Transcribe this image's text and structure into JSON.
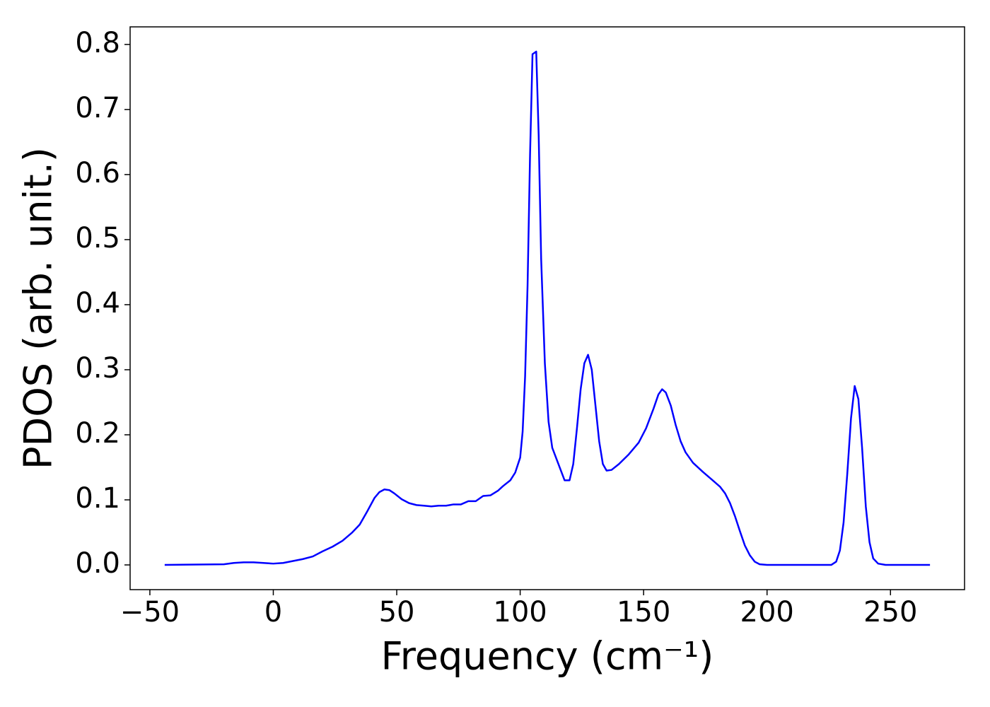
{
  "chart_data": {
    "type": "line",
    "xlabel": "Frequency (cm⁻¹)",
    "ylabel": "PDOS (arb. unit.)",
    "x": [
      -44,
      -20,
      -16,
      -12,
      -8,
      -4,
      0,
      4,
      8,
      12,
      16,
      20,
      24,
      28,
      32,
      35,
      38,
      41,
      43,
      45,
      47,
      49,
      52,
      55,
      58,
      61,
      64,
      67,
      70,
      73,
      76,
      79,
      82,
      85,
      88,
      91,
      93,
      96,
      98,
      100,
      101,
      102,
      103,
      104,
      105,
      106.5,
      107.5,
      108.5,
      110,
      111.5,
      113,
      115,
      118,
      120,
      121.5,
      123,
      124.5,
      126,
      127.5,
      129,
      130.5,
      132,
      133.5,
      135,
      137,
      140,
      144,
      148,
      151,
      154,
      156,
      157.5,
      159,
      161,
      163,
      165,
      167,
      170,
      174,
      178,
      181,
      183,
      185,
      187,
      189,
      191,
      193,
      195,
      197,
      200,
      226,
      228,
      229.5,
      231,
      232.5,
      234,
      235.5,
      237,
      238.5,
      240,
      241.5,
      243,
      245,
      248,
      266
    ],
    "series": [
      {
        "name": "PDOS",
        "color": "#0000ff",
        "values": [
          0,
          0.001,
          0.003,
          0.004,
          0.004,
          0.003,
          0.002,
          0.003,
          0.006,
          0.009,
          0.013,
          0.021,
          0.028,
          0.037,
          0.05,
          0.062,
          0.082,
          0.103,
          0.112,
          0.116,
          0.115,
          0.11,
          0.101,
          0.095,
          0.092,
          0.091,
          0.09,
          0.091,
          0.091,
          0.093,
          0.093,
          0.098,
          0.098,
          0.106,
          0.107,
          0.114,
          0.121,
          0.13,
          0.142,
          0.165,
          0.205,
          0.29,
          0.43,
          0.63,
          0.785,
          0.789,
          0.66,
          0.47,
          0.31,
          0.22,
          0.18,
          0.16,
          0.13,
          0.13,
          0.155,
          0.21,
          0.27,
          0.31,
          0.323,
          0.3,
          0.245,
          0.19,
          0.155,
          0.145,
          0.146,
          0.155,
          0.17,
          0.188,
          0.21,
          0.24,
          0.262,
          0.27,
          0.265,
          0.245,
          0.215,
          0.19,
          0.173,
          0.157,
          0.143,
          0.13,
          0.12,
          0.11,
          0.095,
          0.075,
          0.052,
          0.03,
          0.015,
          0.005,
          0.001,
          0,
          0,
          0.005,
          0.022,
          0.065,
          0.14,
          0.225,
          0.275,
          0.255,
          0.18,
          0.09,
          0.035,
          0.01,
          0.002,
          0,
          0
        ]
      }
    ],
    "xlim": [
      -58,
      280
    ],
    "ylim": [
      -0.038,
      0.827
    ],
    "xticks": [
      {
        "value": -50,
        "label": "−50"
      },
      0,
      50,
      100,
      150,
      200,
      250
    ],
    "yticks": [
      {
        "value": 0,
        "label": "0.0"
      },
      0.1,
      0.2,
      0.3,
      0.4,
      0.5,
      0.6,
      0.7,
      0.8
    ],
    "grid": false
  }
}
